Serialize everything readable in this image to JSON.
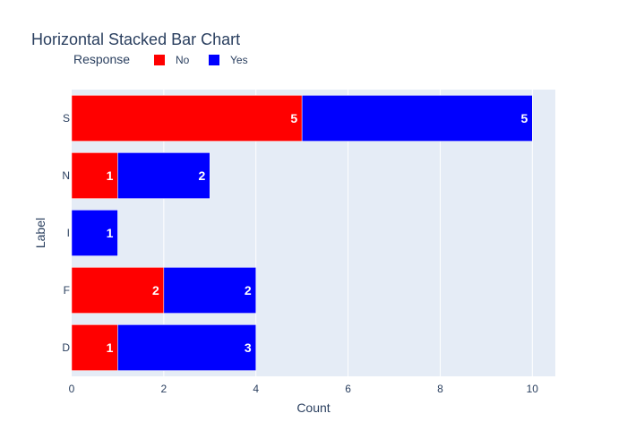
{
  "chart_data": {
    "type": "bar",
    "orientation": "horizontal",
    "stacked": true,
    "title": "Horizontal Stacked Bar Chart",
    "xlabel": "Count",
    "ylabel": "Label",
    "categories": [
      "D",
      "F",
      "I",
      "N",
      "S"
    ],
    "series": [
      {
        "name": "No",
        "color": "#ff0000",
        "values": [
          1,
          2,
          0,
          1,
          5
        ]
      },
      {
        "name": "Yes",
        "color": "#0000ff",
        "values": [
          3,
          2,
          1,
          2,
          5
        ]
      }
    ],
    "xlim": [
      0,
      10.5
    ],
    "xticks": [
      0,
      2,
      4,
      6,
      8,
      10
    ],
    "grid": true,
    "legend": {
      "title": "Response",
      "placement": "top-left",
      "orientation": "horizontal"
    },
    "plot_background": "#e5ecf6"
  }
}
